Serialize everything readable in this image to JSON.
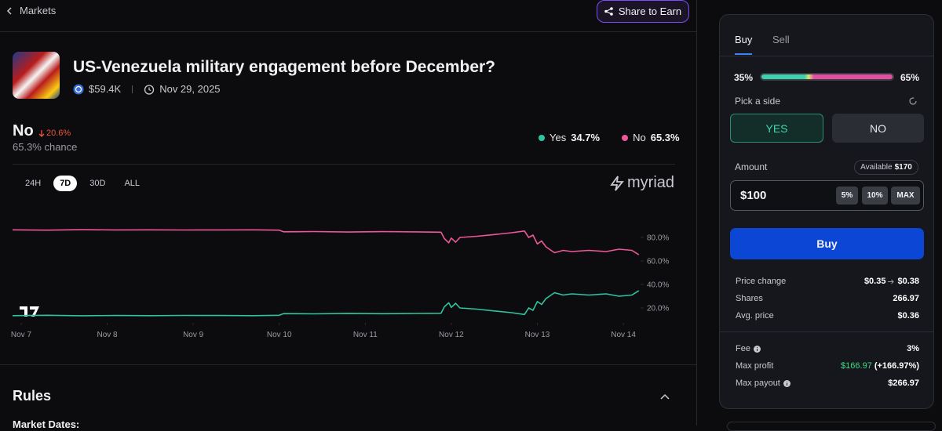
{
  "nav": {
    "back": "Markets",
    "share": "Share to Earn"
  },
  "market": {
    "title": "US-Venezuela military engagement before December?",
    "volume": "$59.4K",
    "date": "Nov 29, 2025"
  },
  "outcome": {
    "name": "No",
    "change": "20.6%",
    "chance": "65.3% chance"
  },
  "ranges": [
    "24H",
    "7D",
    "30D",
    "ALL"
  ],
  "active_range": 1,
  "brand": "myriad",
  "chart_data": {
    "type": "line",
    "x": [
      6.9,
      7.3,
      7.7,
      8.1,
      8.5,
      8.9,
      9.3,
      9.7,
      10.0,
      10.05,
      10.4,
      10.8,
      11.2,
      11.6,
      11.88,
      11.92,
      11.97,
      12.0,
      12.05,
      12.1,
      12.3,
      12.5,
      12.7,
      12.85,
      12.9,
      12.95,
      13.0,
      13.05,
      13.1,
      13.2,
      13.3,
      13.4,
      13.6,
      13.8,
      13.95,
      14.1,
      14.18
    ],
    "series": [
      {
        "name": "Yes",
        "value_label": "34.7%",
        "color": "#2ec4a0",
        "values": [
          13.5,
          13.8,
          13.4,
          13.6,
          13.5,
          13.7,
          13.6,
          13.5,
          13.8,
          15.2,
          15.0,
          15.4,
          15.1,
          15.3,
          15.5,
          21.0,
          24.5,
          20.5,
          24.0,
          20.0,
          19.0,
          17.5,
          16.0,
          14.5,
          20.0,
          18.0,
          25.5,
          23.0,
          28.0,
          33.0,
          31.0,
          32.0,
          31.0,
          32.0,
          30.0,
          31.0,
          34.7
        ]
      },
      {
        "name": "No",
        "value_label": "65.3%",
        "color": "#f0569a",
        "values": [
          86.5,
          86.2,
          86.6,
          86.4,
          86.5,
          86.3,
          86.4,
          86.5,
          86.2,
          84.8,
          85.0,
          84.6,
          84.9,
          84.7,
          84.5,
          79.0,
          75.5,
          79.5,
          76.0,
          80.0,
          81.0,
          82.5,
          84.0,
          85.5,
          80.0,
          82.0,
          74.5,
          77.0,
          72.0,
          67.0,
          69.0,
          68.0,
          69.0,
          68.0,
          70.0,
          69.0,
          65.3
        ]
      }
    ],
    "xlim": [
      6.9,
      14.2
    ],
    "xticks": [
      {
        "value": 7,
        "label": "Nov 7"
      },
      {
        "value": 8,
        "label": "Nov 8"
      },
      {
        "value": 9,
        "label": "Nov 9"
      },
      {
        "value": 10,
        "label": "Nov 10"
      },
      {
        "value": 11,
        "label": "Nov 11"
      },
      {
        "value": 12,
        "label": "Nov 12"
      },
      {
        "value": 13,
        "label": "Nov 13"
      },
      {
        "value": 14,
        "label": "Nov 14"
      }
    ],
    "ylim": [
      10,
      90
    ],
    "yticks": [
      {
        "value": 20,
        "label": "20.0%"
      },
      {
        "value": 40,
        "label": "40.0%"
      },
      {
        "value": 60,
        "label": "60.0%"
      },
      {
        "value": 80,
        "label": "80.0%"
      }
    ],
    "grid": false
  },
  "rules": {
    "heading": "Rules",
    "subheading": "Market Dates:"
  },
  "trade": {
    "tabs": [
      "Buy",
      "Sell"
    ],
    "split": [
      "35%",
      "65%"
    ],
    "pick": "Pick a side",
    "sides": [
      "YES",
      "NO"
    ],
    "amount_label": "Amount",
    "available_label": "Available",
    "available": "$170",
    "amount": "$100",
    "presets": [
      "5%",
      "10%",
      "MAX"
    ],
    "submit": "Buy",
    "price_change": {
      "label": "Price change",
      "from": "$0.35",
      "to": "$0.38"
    },
    "shares": {
      "label": "Shares",
      "value": "266.97"
    },
    "avg_price": {
      "label": "Avg. price",
      "value": "$0.36"
    },
    "fee": {
      "label": "Fee",
      "value": "3%"
    },
    "max_profit": {
      "label": "Max profit",
      "value": "$166.97",
      "percent": "(+166.97%)"
    },
    "max_payout": {
      "label": "Max payout",
      "value": "$266.97"
    }
  }
}
